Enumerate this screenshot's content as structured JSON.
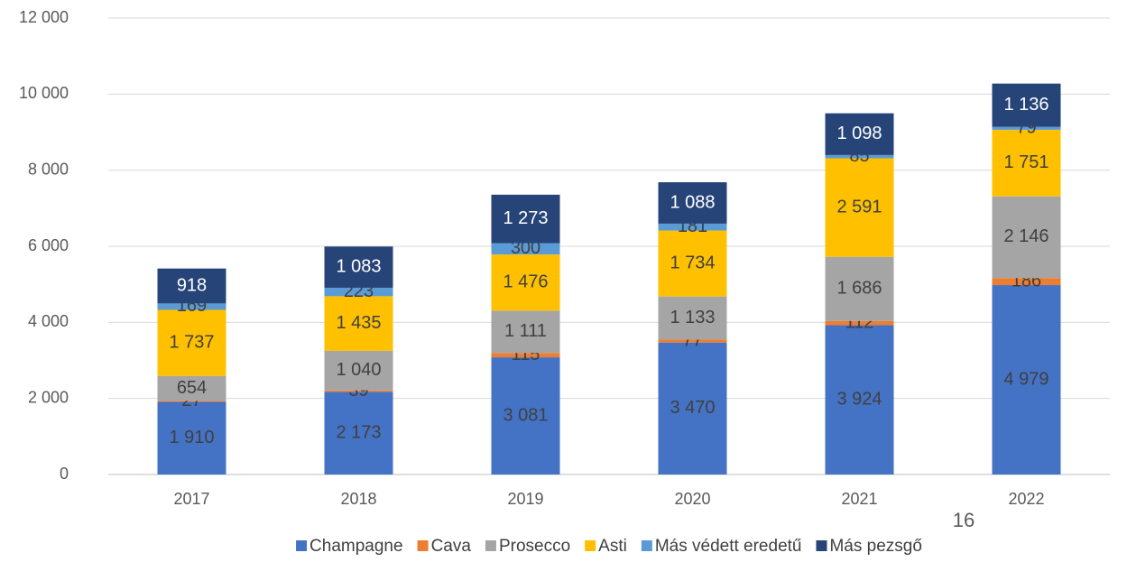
{
  "chart_data": {
    "type": "stacked_bar",
    "categories": [
      "2017",
      "2018",
      "2019",
      "2020",
      "2021",
      "2022"
    ],
    "series": [
      {
        "name": "Champagne",
        "color": "#4472c4",
        "label_color": "#404040",
        "values": [
          1910,
          2173,
          3081,
          3470,
          3924,
          4979
        ],
        "value_labels": [
          "1 910",
          "2 173",
          "3 081",
          "3 470",
          "3 924",
          "4 979"
        ]
      },
      {
        "name": "Cava",
        "color": "#ed7d31",
        "label_color": "#404040",
        "values": [
          27,
          39,
          115,
          77,
          112,
          186
        ],
        "value_labels": [
          "27",
          "39",
          "115",
          "77",
          "112",
          "186"
        ]
      },
      {
        "name": "Prosecco",
        "color": "#a5a5a5",
        "label_color": "#404040",
        "values": [
          654,
          1040,
          1111,
          1133,
          1686,
          2146
        ],
        "value_labels": [
          "654",
          "1 040",
          "1 111",
          "1 133",
          "1 686",
          "2 146"
        ]
      },
      {
        "name": "Asti",
        "color": "#ffc000",
        "label_color": "#404040",
        "values": [
          1737,
          1435,
          1476,
          1734,
          2591,
          1751
        ],
        "value_labels": [
          "1 737",
          "1 435",
          "1 476",
          "1 734",
          "2 591",
          "1 751"
        ]
      },
      {
        "name": "Más védett eredetű",
        "color": "#5b9bd5",
        "label_color": "#404040",
        "values": [
          169,
          223,
          300,
          181,
          85,
          79
        ],
        "value_labels": [
          "169",
          "223",
          "300",
          "181",
          "85",
          "79"
        ]
      },
      {
        "name": "Más pezsgő",
        "color": "#264478",
        "label_color": "#ffffff",
        "values": [
          918,
          1083,
          1273,
          1088,
          1098,
          1136
        ],
        "value_labels": [
          "918",
          "1 083",
          "1 273",
          "1 088",
          "1 098",
          "1 136"
        ]
      }
    ],
    "ylim": [
      0,
      12000
    ],
    "yticks": [
      {
        "value": 0,
        "label": "0"
      },
      {
        "value": 2000,
        "label": "2 000"
      },
      {
        "value": 4000,
        "label": "4 000"
      },
      {
        "value": 6000,
        "label": "6 000"
      },
      {
        "value": 8000,
        "label": "8 000"
      },
      {
        "value": 10000,
        "label": "10 000"
      },
      {
        "value": 12000,
        "label": "12 000"
      }
    ],
    "grid": true,
    "legend": "bottom",
    "annotation": "16"
  }
}
